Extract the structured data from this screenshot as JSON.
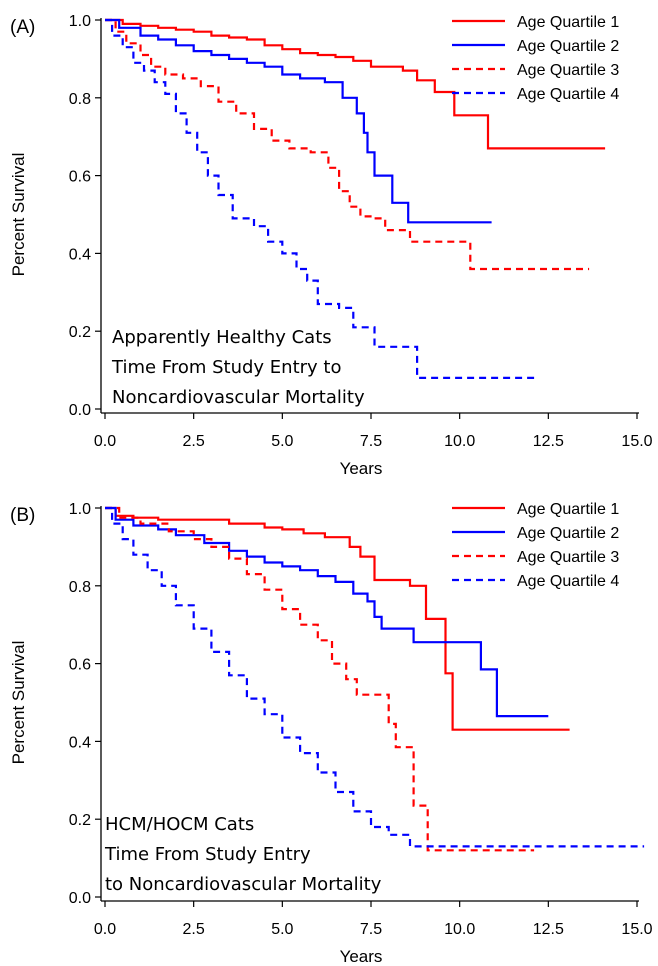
{
  "chart_data": [
    {
      "type": "line",
      "panel_label": "(A)",
      "xlabel": "Years",
      "ylabel": "Percent Survival",
      "xlim": [
        0,
        15
      ],
      "ylim": [
        0,
        1
      ],
      "xticks": [
        "0.0",
        "2.5",
        "5.0",
        "7.5",
        "10.0",
        "12.5",
        "15.0"
      ],
      "yticks": [
        "0.0",
        "0.2",
        "0.4",
        "0.6",
        "0.8",
        "1.0"
      ],
      "annotation": [
        "Apparently Healthy Cats",
        "Time From Study Entry to",
        "Noncardiovascular Mortality"
      ],
      "legend_position": "top-right",
      "series": [
        {
          "name": "Age Quartile 1",
          "color": "#ff0000",
          "dashed": false,
          "points": [
            [
              0,
              1.0
            ],
            [
              0.5,
              0.99
            ],
            [
              1.0,
              0.985
            ],
            [
              1.5,
              0.98
            ],
            [
              2.0,
              0.975
            ],
            [
              2.5,
              0.97
            ],
            [
              3.0,
              0.96
            ],
            [
              3.5,
              0.955
            ],
            [
              4.0,
              0.95
            ],
            [
              4.5,
              0.935
            ],
            [
              5.0,
              0.925
            ],
            [
              5.5,
              0.915
            ],
            [
              6.0,
              0.91
            ],
            [
              6.5,
              0.905
            ],
            [
              7.0,
              0.895
            ],
            [
              7.5,
              0.88
            ],
            [
              8.4,
              0.87
            ],
            [
              8.8,
              0.845
            ],
            [
              9.3,
              0.815
            ],
            [
              9.85,
              0.755
            ],
            [
              10.8,
              0.67
            ],
            [
              14.1,
              0.67
            ]
          ]
        },
        {
          "name": "Age Quartile 2",
          "color": "#0000ff",
          "dashed": false,
          "points": [
            [
              0,
              1.0
            ],
            [
              0.4,
              0.98
            ],
            [
              1.0,
              0.96
            ],
            [
              1.5,
              0.95
            ],
            [
              2.0,
              0.935
            ],
            [
              2.5,
              0.92
            ],
            [
              3.0,
              0.91
            ],
            [
              3.5,
              0.9
            ],
            [
              4.0,
              0.89
            ],
            [
              4.5,
              0.88
            ],
            [
              5.0,
              0.86
            ],
            [
              5.5,
              0.85
            ],
            [
              6.2,
              0.84
            ],
            [
              6.7,
              0.8
            ],
            [
              7.1,
              0.76
            ],
            [
              7.3,
              0.71
            ],
            [
              7.4,
              0.66
            ],
            [
              7.6,
              0.6
            ],
            [
              8.1,
              0.53
            ],
            [
              8.55,
              0.48
            ],
            [
              10.9,
              0.48
            ]
          ]
        },
        {
          "name": "Age Quartile 3",
          "color": "#ff0000",
          "dashed": true,
          "points": [
            [
              0,
              1.0
            ],
            [
              0.3,
              0.97
            ],
            [
              0.6,
              0.94
            ],
            [
              1.0,
              0.91
            ],
            [
              1.3,
              0.88
            ],
            [
              1.7,
              0.86
            ],
            [
              2.2,
              0.85
            ],
            [
              2.7,
              0.83
            ],
            [
              3.2,
              0.79
            ],
            [
              3.7,
              0.76
            ],
            [
              4.2,
              0.72
            ],
            [
              4.7,
              0.69
            ],
            [
              5.2,
              0.67
            ],
            [
              5.8,
              0.66
            ],
            [
              6.3,
              0.62
            ],
            [
              6.6,
              0.56
            ],
            [
              6.9,
              0.52
            ],
            [
              7.2,
              0.495
            ],
            [
              7.6,
              0.49
            ],
            [
              7.9,
              0.46
            ],
            [
              8.6,
              0.43
            ],
            [
              10.3,
              0.36
            ],
            [
              13.65,
              0.36
            ]
          ]
        },
        {
          "name": "Age Quartile 4",
          "color": "#0000ff",
          "dashed": true,
          "points": [
            [
              0,
              1.0
            ],
            [
              0.2,
              0.96
            ],
            [
              0.5,
              0.93
            ],
            [
              0.8,
              0.89
            ],
            [
              1.1,
              0.87
            ],
            [
              1.4,
              0.84
            ],
            [
              1.7,
              0.81
            ],
            [
              2.0,
              0.76
            ],
            [
              2.3,
              0.71
            ],
            [
              2.6,
              0.66
            ],
            [
              2.9,
              0.6
            ],
            [
              3.2,
              0.55
            ],
            [
              3.6,
              0.49
            ],
            [
              4.2,
              0.47
            ],
            [
              4.6,
              0.43
            ],
            [
              5.0,
              0.4
            ],
            [
              5.4,
              0.36
            ],
            [
              5.7,
              0.33
            ],
            [
              6.0,
              0.27
            ],
            [
              6.6,
              0.26
            ],
            [
              7.0,
              0.21
            ],
            [
              7.6,
              0.16
            ],
            [
              8.8,
              0.08
            ],
            [
              12.1,
              0.08
            ]
          ]
        }
      ]
    },
    {
      "type": "line",
      "panel_label": "(B)",
      "xlabel": "Years",
      "ylabel": "Percent Survival",
      "xlim": [
        0,
        15
      ],
      "ylim": [
        0,
        1
      ],
      "xticks": [
        "0.0",
        "2.5",
        "5.0",
        "7.5",
        "10.0",
        "12.5",
        "15.0"
      ],
      "yticks": [
        "0.0",
        "0.2",
        "0.4",
        "0.6",
        "0.8",
        "1.0"
      ],
      "annotation": [
        "HCM/HOCM Cats",
        "Time From Study Entry",
        "to Noncardiovascular Mortality"
      ],
      "legend_position": "top-right",
      "series": [
        {
          "name": "Age Quartile 1",
          "color": "#ff0000",
          "dashed": false,
          "points": [
            [
              0,
              1.0
            ],
            [
              0.3,
              0.98
            ],
            [
              0.8,
              0.975
            ],
            [
              1.5,
              0.97
            ],
            [
              3.5,
              0.96
            ],
            [
              4.5,
              0.95
            ],
            [
              5.0,
              0.945
            ],
            [
              5.6,
              0.935
            ],
            [
              6.2,
              0.925
            ],
            [
              6.9,
              0.9
            ],
            [
              7.2,
              0.875
            ],
            [
              7.6,
              0.815
            ],
            [
              8.6,
              0.8
            ],
            [
              9.05,
              0.715
            ],
            [
              9.6,
              0.575
            ],
            [
              9.8,
              0.43
            ],
            [
              13.1,
              0.43
            ]
          ]
        },
        {
          "name": "Age Quartile 2",
          "color": "#0000ff",
          "dashed": false,
          "points": [
            [
              0,
              1.0
            ],
            [
              0.3,
              0.97
            ],
            [
              0.8,
              0.955
            ],
            [
              1.5,
              0.945
            ],
            [
              2.0,
              0.93
            ],
            [
              2.8,
              0.91
            ],
            [
              3.5,
              0.89
            ],
            [
              4.0,
              0.875
            ],
            [
              4.5,
              0.86
            ],
            [
              5.0,
              0.85
            ],
            [
              5.5,
              0.84
            ],
            [
              6.0,
              0.825
            ],
            [
              6.5,
              0.81
            ],
            [
              7.0,
              0.78
            ],
            [
              7.4,
              0.76
            ],
            [
              7.6,
              0.72
            ],
            [
              7.8,
              0.69
            ],
            [
              8.7,
              0.655
            ],
            [
              10.6,
              0.585
            ],
            [
              11.05,
              0.465
            ],
            [
              12.5,
              0.465
            ]
          ]
        },
        {
          "name": "Age Quartile 3",
          "color": "#ff0000",
          "dashed": true,
          "points": [
            [
              0,
              1.0
            ],
            [
              0.4,
              0.975
            ],
            [
              1.0,
              0.96
            ],
            [
              1.8,
              0.94
            ],
            [
              2.5,
              0.92
            ],
            [
              3.0,
              0.9
            ],
            [
              3.5,
              0.87
            ],
            [
              4.0,
              0.83
            ],
            [
              4.5,
              0.79
            ],
            [
              5.0,
              0.74
            ],
            [
              5.5,
              0.7
            ],
            [
              6.0,
              0.66
            ],
            [
              6.4,
              0.6
            ],
            [
              6.8,
              0.56
            ],
            [
              7.1,
              0.52
            ],
            [
              8.0,
              0.445
            ],
            [
              8.2,
              0.385
            ],
            [
              8.7,
              0.235
            ],
            [
              9.1,
              0.12
            ],
            [
              12.1,
              0.12
            ]
          ]
        },
        {
          "name": "Age Quartile 4",
          "color": "#0000ff",
          "dashed": true,
          "points": [
            [
              0,
              1.0
            ],
            [
              0.2,
              0.96
            ],
            [
              0.5,
              0.92
            ],
            [
              0.8,
              0.88
            ],
            [
              1.2,
              0.84
            ],
            [
              1.6,
              0.8
            ],
            [
              2.0,
              0.75
            ],
            [
              2.5,
              0.69
            ],
            [
              3.0,
              0.63
            ],
            [
              3.5,
              0.57
            ],
            [
              4.0,
              0.51
            ],
            [
              4.5,
              0.47
            ],
            [
              5.0,
              0.41
            ],
            [
              5.5,
              0.37
            ],
            [
              6.0,
              0.32
            ],
            [
              6.5,
              0.27
            ],
            [
              7.0,
              0.22
            ],
            [
              7.5,
              0.18
            ],
            [
              8.0,
              0.16
            ],
            [
              8.6,
              0.13
            ],
            [
              15.2,
              0.13
            ]
          ]
        }
      ]
    }
  ]
}
